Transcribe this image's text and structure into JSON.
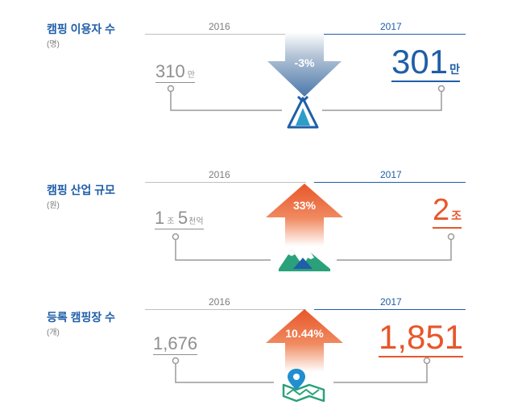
{
  "colors": {
    "blue": "#1f5ea8",
    "orange": "#e8562a",
    "gray": "#8f8f8f",
    "green": "#2aa17a"
  },
  "stats": [
    {
      "title": "캠핑 이용자 수",
      "subtitle": "(명)",
      "year_prev": "2016",
      "year_curr": "2017",
      "prev_value": "310",
      "prev_unit": "만",
      "curr_value": "301",
      "curr_unit": "만",
      "change": "-3%",
      "direction": "down",
      "icon": "tent-icon"
    },
    {
      "title": "캠핑 산업 규모",
      "subtitle": "(원)",
      "year_prev": "2016",
      "year_curr": "2017",
      "prev_value_a": "1",
      "prev_unit_a": "조",
      "prev_value_b": "5",
      "prev_unit_b": "천억",
      "curr_value": "2",
      "curr_unit": "조",
      "change": "33%",
      "direction": "up",
      "icon": "mountain-icon"
    },
    {
      "title": "등록 캠핑장 수",
      "subtitle": "(개)",
      "year_prev": "2016",
      "year_curr": "2017",
      "prev_value": "1,676",
      "curr_value": "1,851",
      "change": "10.44%",
      "direction": "up",
      "icon": "map-pin-icon"
    }
  ]
}
